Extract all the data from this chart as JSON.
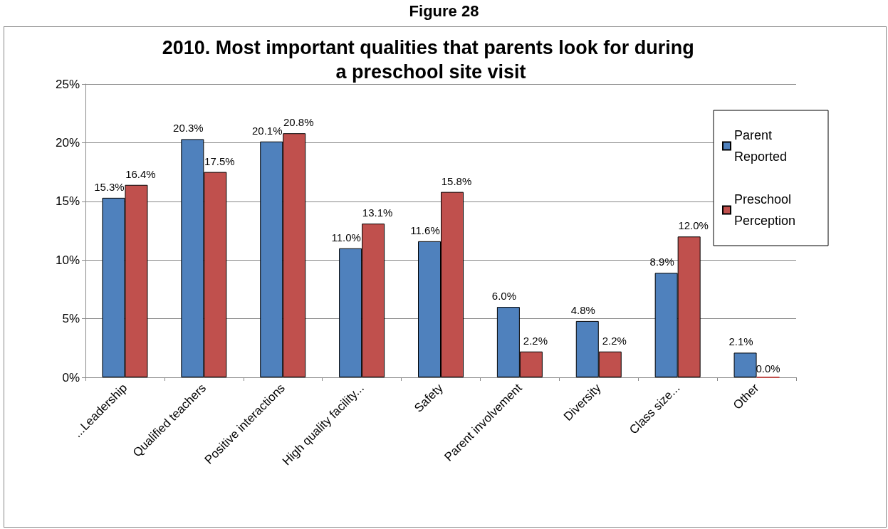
{
  "chart_data": {
    "type": "bar",
    "title": "2010. Most important qualities that parents look for during a preschool site visit",
    "annotations": [
      "Figure 28"
    ],
    "categories": [
      "...Leadership",
      "Qualified teachers",
      "Positive interactions",
      "High quality facility...",
      "Safety",
      "Parent involvement",
      "Diversity",
      "Class size...",
      "Other"
    ],
    "series": [
      {
        "name": "Parent Reported",
        "color": "#4f81bd",
        "values": [
          15.3,
          20.3,
          20.1,
          11.0,
          11.6,
          6.0,
          4.8,
          8.9,
          2.1
        ],
        "value_labels": [
          "15.3%",
          "20.3%",
          "20.1%",
          "11.0%",
          "11.6%",
          "6.0%",
          "4.8%",
          "8.9%",
          "2.1%"
        ]
      },
      {
        "name": "Preschool Perception",
        "color": "#c0504d",
        "values": [
          16.4,
          17.5,
          20.8,
          13.1,
          15.8,
          2.2,
          2.2,
          12.0,
          0.0
        ],
        "value_labels": [
          "16.4%",
          "17.5%",
          "20.8%",
          "13.1%",
          "15.8%",
          "2.2%",
          "2.2%",
          "12.0%",
          "0.0%"
        ]
      }
    ],
    "ylim": [
      0,
      25
    ],
    "yticks": [
      {
        "value": 0,
        "label": "0%"
      },
      {
        "value": 5,
        "label": "5%"
      },
      {
        "value": 10,
        "label": "10%"
      },
      {
        "value": 15,
        "label": "15%"
      },
      {
        "value": 20,
        "label": "20%"
      },
      {
        "value": 25,
        "label": "25%"
      }
    ],
    "grid": "y",
    "legend": "right"
  }
}
